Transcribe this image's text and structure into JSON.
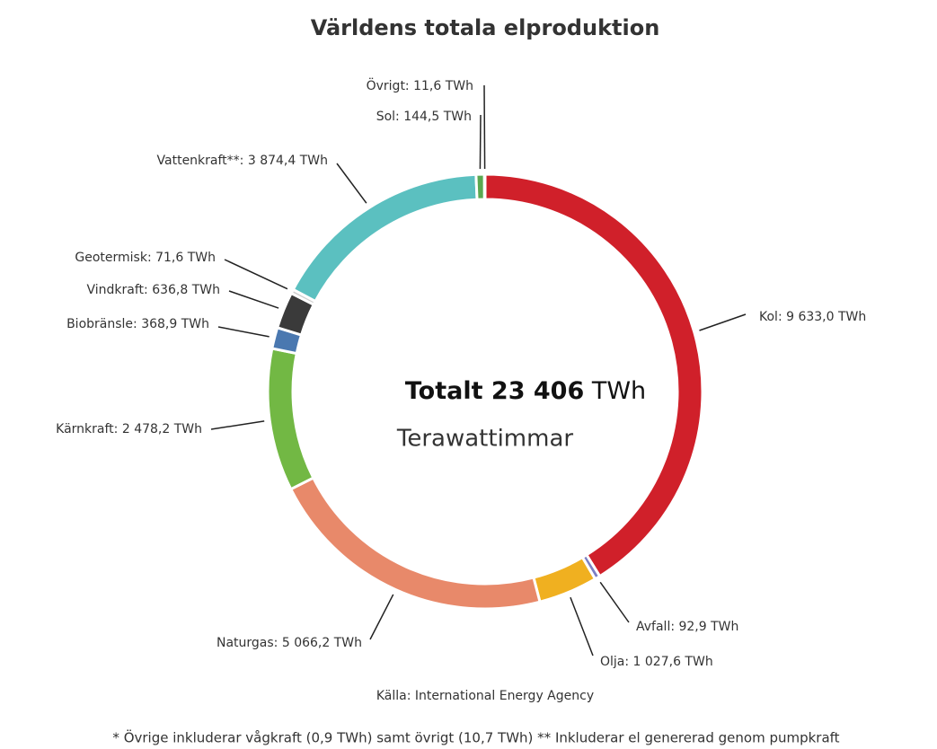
{
  "chart_data": {
    "type": "donut",
    "title": "Världens totala elproduktion",
    "center_title": "Totalt 23 406",
    "center_unit": "TWh",
    "center_subtitle": "Terawattimmar",
    "source": "Källa: International Energy Agency",
    "footnote": "* Övrige inkluderar vågkraft (0,9 TWh) samt övrigt (10,7 TWh) ** Inkluderar el genererad genom pumpkraft",
    "values": [
      9633.0,
      92.9,
      1027.6,
      5066.2,
      2478.2,
      368.9,
      636.8,
      71.6,
      3874.4,
      144.5,
      11.6
    ],
    "value_labels": [
      "Kol: 9 633,0 TWh",
      "Avfall: 92,9 TWh",
      "Olja: 1 027,6 TWh",
      "Naturgas: 5 066,2 TWh",
      "Kärnkraft: 2 478,2 TWh",
      "Biobränsle: 368,9 TWh",
      "Vindkraft: 636,8 TWh",
      "Geotermisk: 71,6 TWh",
      "Vattenkraft**: 3 874,4 TWh",
      "Sol: 144,5 TWh",
      "Övrigt: 11,6 TWh"
    ],
    "colors": [
      "#d0202a",
      "#7b7fc4",
      "#f0b020",
      "#e8896a",
      "#72b844",
      "#4a78b0",
      "#3a3a3a",
      "#cfcfcf",
      "#5bc0c0",
      "#5aa850",
      "#8a8a8a"
    ]
  }
}
